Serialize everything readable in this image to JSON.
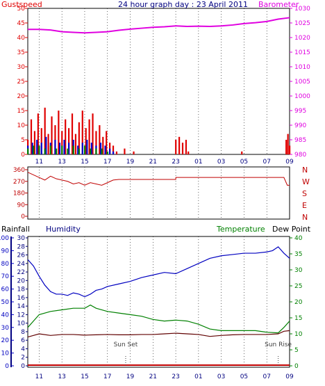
{
  "colors": {
    "gust": "#e00000",
    "wind": "#0000d0",
    "windGreen": "#008000",
    "baro": "#e000e0",
    "dir": "#c00000",
    "humidity": "#0000c0",
    "temp": "#008000",
    "dew": "#600000",
    "rain": "#c00000",
    "sun": "#404040",
    "frame": "#000000",
    "xtick": "#000080",
    "dirLetter": "#c00000",
    "rainAxis": "#000080",
    "tempAxis": "#008000"
  },
  "chart_data": [
    {
      "type": "bar",
      "name": "gust-baro",
      "title": "24 hour graph day : 23 April 2011",
      "leftLabel": "Gustspeed",
      "rightLabel": "Barometer",
      "xTicks": [
        "11",
        "13",
        "15",
        "17",
        "19",
        "21",
        "23",
        "01",
        "03",
        "05",
        "07",
        "09"
      ],
      "leftTicks": [
        "50",
        "45",
        "40",
        "35",
        "30",
        "25",
        "20",
        "15",
        "10",
        "5",
        "0"
      ],
      "rightTicks": [
        "1030",
        "1025",
        "1020",
        "1015",
        "1010",
        "1005",
        "1000",
        "995",
        "990",
        "985",
        "980"
      ],
      "gustLim": [
        0,
        50
      ],
      "baroLim": [
        980,
        1030
      ],
      "gust": [
        [
          10,
          5
        ],
        [
          10.3,
          12
        ],
        [
          10.6,
          8
        ],
        [
          10.9,
          14
        ],
        [
          11.2,
          9
        ],
        [
          11.5,
          16
        ],
        [
          11.8,
          7
        ],
        [
          12.1,
          13
        ],
        [
          12.4,
          10
        ],
        [
          12.7,
          15
        ],
        [
          13,
          8
        ],
        [
          13.3,
          12
        ],
        [
          13.6,
          9
        ],
        [
          13.9,
          14
        ],
        [
          14.2,
          7
        ],
        [
          14.5,
          11
        ],
        [
          14.8,
          15
        ],
        [
          15.1,
          9
        ],
        [
          15.4,
          12
        ],
        [
          15.7,
          14
        ],
        [
          16,
          8
        ],
        [
          16.3,
          10
        ],
        [
          16.6,
          6
        ],
        [
          16.9,
          8
        ],
        [
          17.2,
          4
        ],
        [
          17.5,
          3
        ],
        [
          17.8,
          1
        ],
        [
          18.5,
          2
        ],
        [
          19.3,
          1
        ],
        [
          23,
          5
        ],
        [
          23.3,
          6
        ],
        [
          23.6,
          4
        ],
        [
          23.9,
          5
        ],
        [
          24.1,
          1
        ],
        [
          28.8,
          1
        ],
        [
          32.7,
          5
        ],
        [
          32.85,
          7
        ],
        [
          33,
          3
        ]
      ],
      "windBlue": [
        [
          10,
          3
        ],
        [
          10.4,
          4
        ],
        [
          10.8,
          5
        ],
        [
          11.2,
          4
        ],
        [
          11.6,
          6
        ],
        [
          12,
          4
        ],
        [
          12.4,
          5
        ],
        [
          12.8,
          4
        ],
        [
          13.2,
          5
        ],
        [
          13.6,
          4
        ],
        [
          14,
          5
        ],
        [
          14.4,
          3
        ],
        [
          14.8,
          4
        ],
        [
          15.2,
          5
        ],
        [
          15.6,
          4
        ],
        [
          16,
          3
        ],
        [
          16.4,
          4
        ],
        [
          16.8,
          3
        ],
        [
          17.2,
          2
        ],
        [
          17.5,
          1
        ]
      ],
      "windGreen": [
        [
          10,
          2
        ],
        [
          10.5,
          3
        ],
        [
          11,
          3
        ],
        [
          11.5,
          2
        ],
        [
          12,
          3
        ],
        [
          12.5,
          2
        ],
        [
          13,
          3
        ],
        [
          13.5,
          2
        ],
        [
          14,
          3
        ],
        [
          14.5,
          2
        ],
        [
          15,
          3
        ],
        [
          15.5,
          2
        ],
        [
          16,
          2
        ],
        [
          16.5,
          2
        ],
        [
          17,
          1
        ]
      ],
      "baro": [
        [
          10,
          1022.8
        ],
        [
          11,
          1022.8
        ],
        [
          12,
          1022.6
        ],
        [
          13,
          1022.0
        ],
        [
          14,
          1021.8
        ],
        [
          15,
          1021.6
        ],
        [
          16,
          1021.8
        ],
        [
          17,
          1022.0
        ],
        [
          18,
          1022.5
        ],
        [
          19,
          1022.9
        ],
        [
          20,
          1023.2
        ],
        [
          21,
          1023.5
        ],
        [
          22,
          1023.7
        ],
        [
          23,
          1024.0
        ],
        [
          24,
          1023.8
        ],
        [
          25,
          1023.9
        ],
        [
          26,
          1023.8
        ],
        [
          27,
          1024.0
        ],
        [
          28,
          1024.3
        ],
        [
          29,
          1024.8
        ],
        [
          30,
          1025.1
        ],
        [
          31,
          1025.5
        ],
        [
          32,
          1026.3
        ],
        [
          33,
          1026.8
        ]
      ]
    },
    {
      "type": "line",
      "name": "direction",
      "yTicks": [
        "360",
        "270",
        "180",
        "90",
        "0"
      ],
      "compass": [
        "N",
        "W",
        "S",
        "E",
        "N"
      ],
      "dirLim": [
        0,
        360
      ],
      "direction": [
        [
          10,
          340
        ],
        [
          10.5,
          320
        ],
        [
          11,
          300
        ],
        [
          11.5,
          280
        ],
        [
          12,
          310
        ],
        [
          12.5,
          290
        ],
        [
          13,
          280
        ],
        [
          13.5,
          270
        ],
        [
          14,
          250
        ],
        [
          14.5,
          260
        ],
        [
          15,
          240
        ],
        [
          15.5,
          260
        ],
        [
          16,
          250
        ],
        [
          16.5,
          240
        ],
        [
          17,
          260
        ],
        [
          17.5,
          280
        ],
        [
          18,
          285
        ],
        [
          18.5,
          285
        ],
        [
          19,
          285
        ],
        [
          20,
          285
        ],
        [
          21,
          285
        ],
        [
          22,
          285
        ],
        [
          23,
          285
        ],
        [
          23.01,
          300
        ],
        [
          24,
          300
        ],
        [
          25,
          300
        ],
        [
          26,
          300
        ],
        [
          27,
          300
        ],
        [
          28,
          300
        ],
        [
          29,
          300
        ],
        [
          30,
          300
        ],
        [
          31,
          300
        ],
        [
          32,
          300
        ],
        [
          32.5,
          300
        ],
        [
          32.8,
          240
        ],
        [
          33,
          240
        ]
      ]
    },
    {
      "type": "line",
      "name": "rain-humidity-temperature",
      "rainLabel": "Rainfall",
      "humidityLabel": "Humidity",
      "tempLabel": "Temperature",
      "dewLabel": "Dew Point",
      "sunSetLabel": "Sun Set",
      "sunRiseLabel": "Sun Rise",
      "humidityTicks": [
        "100",
        "90",
        "80",
        "70",
        "60",
        "50",
        "40",
        "30",
        "20",
        "10",
        "0"
      ],
      "rainTicks": [
        "30",
        "28",
        "26",
        "24",
        "22",
        "20",
        "18",
        "16",
        "14",
        "12",
        "10",
        "8",
        "6",
        "4",
        "2",
        "0"
      ],
      "tempTicks": [
        "40",
        "35",
        "30",
        "25",
        "20",
        "15",
        "10",
        "5",
        "0"
      ],
      "humidityLim": [
        0,
        100
      ],
      "rainLim": [
        0,
        30
      ],
      "tempLim": [
        0,
        40
      ],
      "sunSet": 18.6,
      "sunRise": 32.0,
      "humidity": [
        [
          10,
          83
        ],
        [
          10.5,
          78
        ],
        [
          11,
          70
        ],
        [
          11.5,
          63
        ],
        [
          12,
          58
        ],
        [
          12.5,
          56
        ],
        [
          13,
          56
        ],
        [
          13.5,
          55
        ],
        [
          14,
          57
        ],
        [
          14.5,
          56
        ],
        [
          15,
          54
        ],
        [
          15.5,
          56
        ],
        [
          16,
          59
        ],
        [
          16.5,
          60
        ],
        [
          17,
          62
        ],
        [
          18,
          64
        ],
        [
          19,
          66
        ],
        [
          20,
          69
        ],
        [
          21,
          71
        ],
        [
          22,
          73
        ],
        [
          23,
          72
        ],
        [
          24,
          76
        ],
        [
          25,
          80
        ],
        [
          26,
          84
        ],
        [
          27,
          86
        ],
        [
          28,
          87
        ],
        [
          29,
          88
        ],
        [
          30,
          88
        ],
        [
          31,
          89
        ],
        [
          31.5,
          90
        ],
        [
          32,
          93
        ],
        [
          32.5,
          88
        ],
        [
          33,
          84
        ]
      ],
      "temperature": [
        [
          10,
          12
        ],
        [
          10.5,
          14
        ],
        [
          11,
          16
        ],
        [
          12,
          17
        ],
        [
          13,
          17.5
        ],
        [
          14,
          18
        ],
        [
          15,
          18
        ],
        [
          15.5,
          19
        ],
        [
          16,
          18
        ],
        [
          17,
          17
        ],
        [
          18,
          16.5
        ],
        [
          19,
          16
        ],
        [
          20,
          15.5
        ],
        [
          21,
          14.5
        ],
        [
          22,
          14
        ],
        [
          23,
          14.3
        ],
        [
          24,
          14
        ],
        [
          25,
          13
        ],
        [
          26,
          11.5
        ],
        [
          27,
          11
        ],
        [
          28,
          11
        ],
        [
          29,
          11
        ],
        [
          30,
          11
        ],
        [
          31,
          10.5
        ],
        [
          32,
          10.3
        ],
        [
          32.5,
          12
        ],
        [
          33,
          14
        ]
      ],
      "dew": [
        [
          10,
          9
        ],
        [
          10.5,
          9.5
        ],
        [
          11,
          10
        ],
        [
          12,
          9.5
        ],
        [
          13,
          9.8
        ],
        [
          14,
          9.8
        ],
        [
          15,
          9.6
        ],
        [
          16,
          9.7
        ],
        [
          17,
          9.8
        ],
        [
          18,
          9.7
        ],
        [
          19,
          9.7
        ],
        [
          20,
          9.8
        ],
        [
          21,
          9.8
        ],
        [
          22,
          10
        ],
        [
          23,
          10.2
        ],
        [
          24,
          10
        ],
        [
          25,
          9.8
        ],
        [
          26,
          9.2
        ],
        [
          27,
          9.5
        ],
        [
          28,
          9.7
        ],
        [
          29,
          9.8
        ],
        [
          30,
          9.8
        ],
        [
          31,
          9.8
        ],
        [
          32,
          10
        ],
        [
          32.5,
          10.8
        ],
        [
          33,
          11
        ]
      ],
      "rainfall": [
        [
          10,
          0
        ],
        [
          33,
          0
        ]
      ]
    }
  ]
}
